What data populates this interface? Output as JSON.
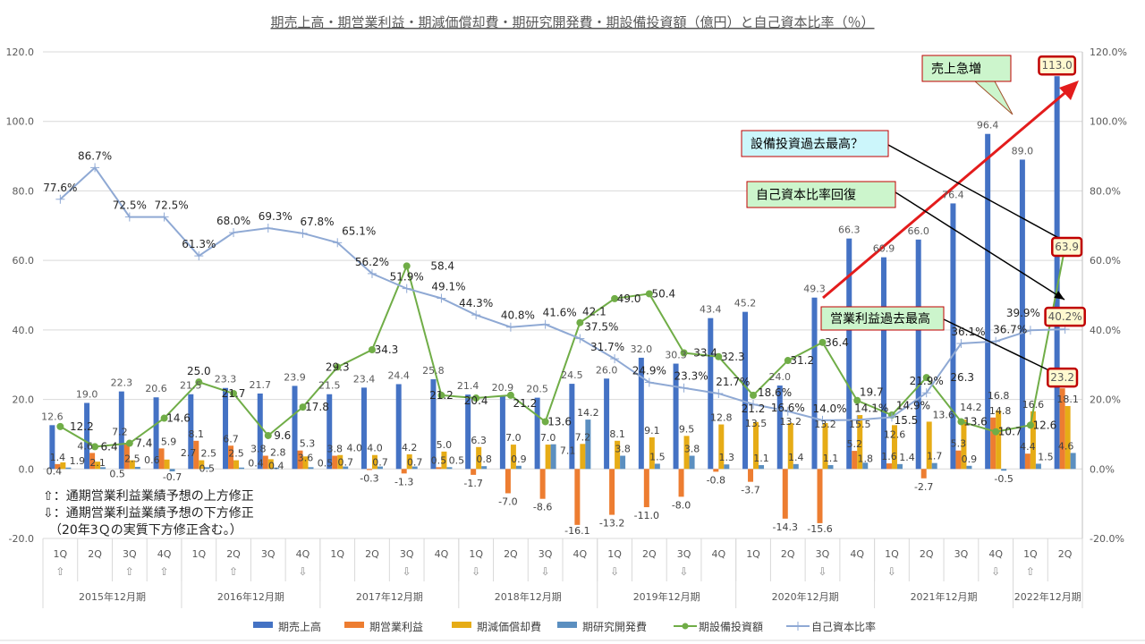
{
  "chart_data": {
    "type": "bar",
    "title": "期売上高・期営業利益・期減価償却費・期研究開発費・期設備投資額（億円）と自己資本比率（％）",
    "categories": [
      "1Q",
      "2Q",
      "3Q",
      "4Q",
      "1Q",
      "2Q",
      "3Q",
      "4Q",
      "1Q",
      "2Q",
      "3Q",
      "4Q",
      "1Q",
      "2Q",
      "3Q",
      "4Q",
      "1Q",
      "2Q",
      "3Q",
      "4Q",
      "1Q",
      "2Q",
      "3Q",
      "4Q",
      "1Q",
      "2Q",
      "3Q",
      "4Q",
      "1Q",
      "2Q"
    ],
    "revision_marks": [
      "⇧",
      "",
      "⇧",
      "⇧",
      "",
      "⇧",
      "",
      "⇩",
      "",
      "",
      "⇩",
      "",
      "⇩",
      "",
      "⇩",
      "",
      "⇩",
      "",
      "⇩",
      "",
      "",
      "",
      "⇩",
      "",
      "⇩",
      "",
      "",
      "⇩",
      "⇧",
      ""
    ],
    "groups": [
      {
        "label": "2015年12月期",
        "count": 4
      },
      {
        "label": "2016年12月期",
        "count": 4
      },
      {
        "label": "2017年12月期",
        "count": 4
      },
      {
        "label": "2018年12月期",
        "count": 4
      },
      {
        "label": "2019年12月期",
        "count": 4
      },
      {
        "label": "2020年12月期",
        "count": 4
      },
      {
        "label": "2021年12月期",
        "count": 4
      },
      {
        "label": "2022年12月期",
        "count": 2
      }
    ],
    "y_left": {
      "min": -20,
      "max": 120,
      "ticks": [
        "-20.0",
        "0.0",
        "20.0",
        "40.0",
        "60.0",
        "80.0",
        "100.0",
        "120.0"
      ]
    },
    "y_right": {
      "min": -20,
      "max": 120,
      "ticks": [
        "-20.0%",
        "0.0%",
        "20.0%",
        "40.0%",
        "60.0%",
        "80.0%",
        "100.0%",
        "120.0%"
      ]
    },
    "grid": true,
    "legend_position": "bottom",
    "series": [
      {
        "name": "期売上高",
        "kind": "bar",
        "color": "#4472c4",
        "values": [
          12.6,
          19.0,
          22.3,
          20.6,
          21.5,
          23.3,
          21.7,
          23.9,
          21.5,
          23.4,
          24.4,
          25.8,
          21.4,
          20.9,
          20.5,
          24.5,
          26.0,
          32.0,
          30.3,
          43.4,
          45.2,
          24.0,
          49.3,
          66.3,
          60.9,
          66.0,
          76.4,
          96.4,
          89.0,
          113.0
        ]
      },
      {
        "name": "期営業利益",
        "kind": "bar",
        "color": "#ed7d31",
        "values": [
          1.4,
          4.6,
          7.2,
          5.9,
          8.1,
          6.7,
          3.8,
          5.3,
          3.8,
          -0.3,
          -1.3,
          0.5,
          -1.7,
          -7.0,
          -8.6,
          -16.1,
          -13.2,
          -11.0,
          -8.0,
          -0.8,
          -3.7,
          -14.3,
          -15.6,
          5.2,
          1.6,
          -2.7,
          5.3,
          14.8,
          4.4,
          23.2
        ]
      },
      {
        "name": "期減価償却費",
        "kind": "bar",
        "color": "#e6ac16",
        "values": [
          1.9,
          2.1,
          2.5,
          2.7,
          2.5,
          2.5,
          2.8,
          3.6,
          4.0,
          4.0,
          4.2,
          5.0,
          6.3,
          7.0,
          7.0,
          7.2,
          8.1,
          9.1,
          9.5,
          12.8,
          13.5,
          13.2,
          13.2,
          15.5,
          12.6,
          13.6,
          14.2,
          16.8,
          16.6,
          18.1
        ]
      },
      {
        "name": "期研究開発費",
        "kind": "bar",
        "color": "#5b8fc0",
        "values": [
          0.4,
          0.5,
          0.6,
          -0.7,
          0.5,
          0.4,
          0.4,
          0.5,
          0.7,
          0.7,
          0.7,
          0.5,
          0.8,
          0.9,
          7.1,
          14.2,
          3.8,
          1.5,
          3.8,
          1.3,
          1.1,
          1.4,
          1.1,
          1.8,
          1.4,
          1.7,
          0.9,
          -0.5,
          1.5,
          4.6
        ]
      },
      {
        "name": "期設備投資額",
        "kind": "line-marker",
        "color": "#70ad47",
        "values": [
          12.2,
          6.4,
          7.4,
          14.6,
          25.0,
          21.7,
          9.6,
          17.8,
          29.3,
          34.3,
          58.4,
          21.2,
          20.4,
          21.2,
          13.6,
          42.1,
          49.0,
          50.4,
          33.4,
          32.3,
          21.2,
          31.2,
          36.4,
          19.7,
          15.5,
          26.3,
          13.6,
          10.7,
          12.6,
          63.9
        ]
      },
      {
        "name": "自己資本比率",
        "kind": "line-plus",
        "axis": "right",
        "color": "#8fa9d4",
        "values": [
          77.6,
          86.7,
          72.5,
          72.5,
          61.3,
          68.0,
          69.3,
          67.8,
          65.1,
          56.2,
          51.9,
          49.1,
          44.3,
          40.8,
          41.6,
          37.5,
          31.7,
          24.9,
          23.3,
          21.7,
          18.6,
          16.6,
          14.0,
          14.1,
          14.9,
          21.9,
          36.1,
          36.7,
          39.9,
          40.2
        ]
      }
    ],
    "annotations": {
      "sales_surge": "売上急増",
      "capex_record": "設備投資過去最高？",
      "equity_recovery": "自己資本比率回復",
      "op_profit_record": "営業利益過去最高"
    },
    "highlighted_labels": [
      "113.0",
      "63.9",
      "40.2%",
      "23.2"
    ],
    "note": "⇧：通期営業利益業績予想の上方修正\n⇩：通期営業利益業績予想の下方修正\n　（20年3Ｑの実質下方修正含む。）"
  }
}
